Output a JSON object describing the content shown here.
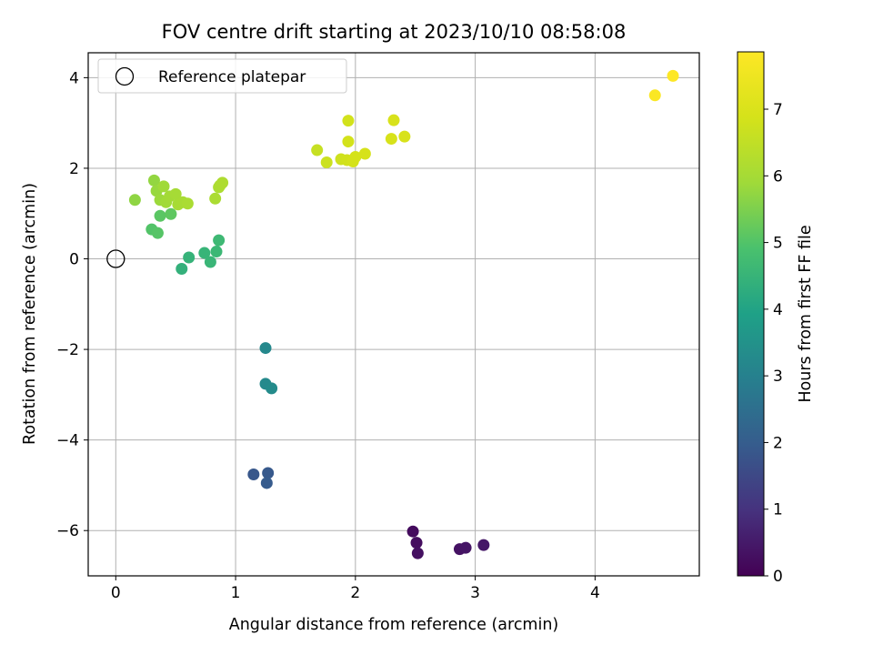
{
  "chart_data": {
    "type": "scatter",
    "title": "FOV centre drift starting at 2023/10/10 08:58:08",
    "xlabel": "Angular distance from reference (arcmin)",
    "ylabel": "Rotation from reference (arcmin)",
    "xlim": [
      -0.23,
      4.87
    ],
    "ylim": [
      -7.0,
      4.55
    ],
    "xticks": [
      0,
      1,
      2,
      3,
      4
    ],
    "yticks": [
      -6,
      -4,
      -2,
      0,
      2,
      4
    ],
    "xtick_labels": [
      "0",
      "1",
      "2",
      "3",
      "4"
    ],
    "ytick_labels": [
      "−6",
      "−4",
      "−2",
      "0",
      "2",
      "4"
    ],
    "grid": true,
    "legend": {
      "placement": "top-left",
      "entries": [
        {
          "label": "Reference platepar",
          "marker": "open-circle"
        }
      ]
    },
    "reference": {
      "x": 0,
      "y": 0
    },
    "colormap": "viridis",
    "colorbar": {
      "label": "Hours from first FF file",
      "min": 0,
      "max": 7.86,
      "ticks": [
        0,
        1,
        2,
        3,
        4,
        5,
        6,
        7
      ],
      "tick_labels": [
        "0",
        "1",
        "2",
        "3",
        "4",
        "5",
        "6",
        "7"
      ]
    },
    "points": [
      {
        "x": 2.48,
        "y": -6.02,
        "h": 0.2
      },
      {
        "x": 2.51,
        "y": -6.27,
        "h": 0.25
      },
      {
        "x": 2.52,
        "y": -6.5,
        "h": 0.3
      },
      {
        "x": 2.87,
        "y": -6.41,
        "h": 0.35
      },
      {
        "x": 2.92,
        "y": -6.38,
        "h": 0.4
      },
      {
        "x": 3.07,
        "y": -6.32,
        "h": 0.45
      },
      {
        "x": 1.15,
        "y": -4.76,
        "h": 1.85
      },
      {
        "x": 1.27,
        "y": -4.73,
        "h": 1.9
      },
      {
        "x": 1.26,
        "y": -4.95,
        "h": 1.95
      },
      {
        "x": 1.25,
        "y": -1.97,
        "h": 3.2
      },
      {
        "x": 1.25,
        "y": -2.76,
        "h": 3.25
      },
      {
        "x": 1.3,
        "y": -2.86,
        "h": 3.3
      },
      {
        "x": 0.55,
        "y": -0.22,
        "h": 4.4
      },
      {
        "x": 0.61,
        "y": 0.03,
        "h": 4.45
      },
      {
        "x": 0.74,
        "y": 0.13,
        "h": 4.5
      },
      {
        "x": 0.79,
        "y": -0.07,
        "h": 4.55
      },
      {
        "x": 0.84,
        "y": 0.16,
        "h": 4.6
      },
      {
        "x": 0.86,
        "y": 0.41,
        "h": 4.65
      },
      {
        "x": 0.3,
        "y": 0.65,
        "h": 5.0
      },
      {
        "x": 0.35,
        "y": 0.57,
        "h": 5.05
      },
      {
        "x": 0.37,
        "y": 0.95,
        "h": 5.1
      },
      {
        "x": 0.46,
        "y": 0.99,
        "h": 5.15
      },
      {
        "x": 0.16,
        "y": 1.3,
        "h": 5.7
      },
      {
        "x": 0.32,
        "y": 1.73,
        "h": 5.75
      },
      {
        "x": 0.34,
        "y": 1.5,
        "h": 5.8
      },
      {
        "x": 0.37,
        "y": 1.3,
        "h": 5.85
      },
      {
        "x": 0.4,
        "y": 1.6,
        "h": 5.9
      },
      {
        "x": 0.42,
        "y": 1.25,
        "h": 5.92
      },
      {
        "x": 0.45,
        "y": 1.38,
        "h": 5.95
      },
      {
        "x": 0.5,
        "y": 1.43,
        "h": 6.0
      },
      {
        "x": 0.52,
        "y": 1.2,
        "h": 6.02
      },
      {
        "x": 0.56,
        "y": 1.25,
        "h": 6.05
      },
      {
        "x": 0.6,
        "y": 1.22,
        "h": 6.08
      },
      {
        "x": 0.83,
        "y": 1.33,
        "h": 6.1
      },
      {
        "x": 0.86,
        "y": 1.58,
        "h": 6.12
      },
      {
        "x": 0.87,
        "y": 1.62,
        "h": 6.14
      },
      {
        "x": 0.89,
        "y": 1.68,
        "h": 6.16
      },
      {
        "x": 1.68,
        "y": 2.4,
        "h": 6.6
      },
      {
        "x": 1.76,
        "y": 2.13,
        "h": 6.7
      },
      {
        "x": 1.88,
        "y": 2.2,
        "h": 6.75
      },
      {
        "x": 1.93,
        "y": 2.18,
        "h": 6.8
      },
      {
        "x": 1.94,
        "y": 3.05,
        "h": 6.82
      },
      {
        "x": 1.94,
        "y": 2.59,
        "h": 6.84
      },
      {
        "x": 1.98,
        "y": 2.15,
        "h": 6.86
      },
      {
        "x": 2.0,
        "y": 2.25,
        "h": 6.88
      },
      {
        "x": 2.08,
        "y": 2.32,
        "h": 6.9
      },
      {
        "x": 2.3,
        "y": 2.65,
        "h": 6.92
      },
      {
        "x": 2.32,
        "y": 3.06,
        "h": 6.94
      },
      {
        "x": 2.41,
        "y": 2.7,
        "h": 6.96
      },
      {
        "x": 4.5,
        "y": 3.61,
        "h": 7.78
      },
      {
        "x": 4.65,
        "y": 4.04,
        "h": 7.86
      }
    ]
  }
}
